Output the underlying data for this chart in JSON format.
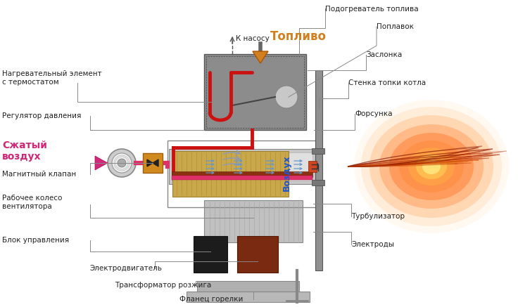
{
  "bg_color": "#ffffff",
  "labels": {
    "fuel_heater": "Подогреватель топлива",
    "float_lbl": "Поплавок",
    "damper": "Заслонка",
    "boiler_wall": "Стенка топки котла",
    "nozzle": "Форсунка",
    "turbulizer": "Турбулизатор",
    "electrodes": "Электроды",
    "heating_elem": "Нагревательный элемент\nс термостатом",
    "pressure_reg": "Регулятор давления",
    "compressed_air": "Сжатый\nвоздух",
    "mag_valve": "Магнитный клапан",
    "fan_wheel": "Рабочее колесо\nвентилятора",
    "control_unit": "Блок управления",
    "motor": "Электродвигатель",
    "ignition": "Трансформатор розжига",
    "flange": "Фланец горелки",
    "fuel": "Топливо",
    "to_pump": "К насосу",
    "air": "Воздух"
  },
  "colors": {
    "gray_tank": "#8a8a8a",
    "gray_tube": "#c0c0c0",
    "gray_dark": "#666666",
    "red_pipe": "#cc1111",
    "pink_pipe": "#e0306a",
    "orange_box": "#d4922a",
    "tan_fan": "#c9a84c",
    "dark_ctrl": "#1a1a1a",
    "brown_motor": "#7a3018",
    "line_color": "#666666",
    "air_arrow": "#5588bb",
    "fuel_orange": "#d08020",
    "magenta_air": "#d02878",
    "blue_air": "#2255cc",
    "wall_gray": "#909090",
    "boiler_gray": "#a0a0a0"
  }
}
